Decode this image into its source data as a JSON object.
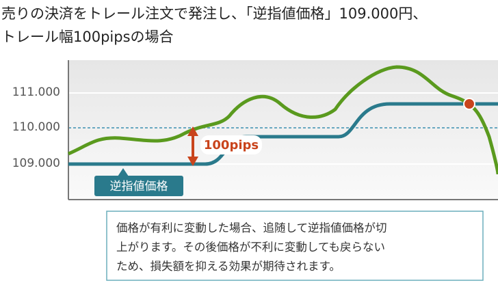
{
  "title": [
    "売りの決済をトレール注文で発注し、「逆指値価格」109.000円、",
    "トレール幅100pipsの場合"
  ],
  "axis_labels": [
    "111.000",
    "110.000",
    "109.000"
  ],
  "stop_label": "逆指値価格",
  "width_label": "100pips",
  "note": [
    "価格が有利に変動した場合、追随して逆指値価格が切",
    "上がります。その後価格が不利に変動しても戻らない",
    "ため、損失額を抑える効果が期待されます。"
  ]
}
